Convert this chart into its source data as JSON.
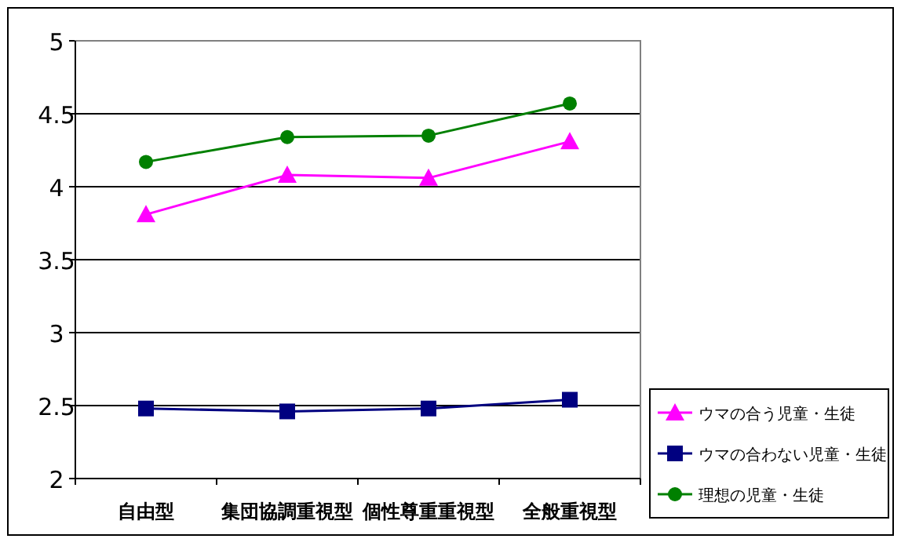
{
  "chart_data": {
    "type": "line",
    "categories": [
      "自由型",
      "集団協調重視型",
      "個性尊重重視型",
      "全般重視型"
    ],
    "series": [
      {
        "name": "ウマの合う児童・生徒",
        "color": "#ff00ff",
        "marker": "triangle",
        "values": [
          3.81,
          4.08,
          4.06,
          4.31
        ]
      },
      {
        "name": "ウマの合わない児童・生徒",
        "color": "#000080",
        "marker": "square",
        "values": [
          2.48,
          2.46,
          2.48,
          2.54
        ]
      },
      {
        "name": "理想の児童・生徒",
        "color": "#008000",
        "marker": "circle",
        "values": [
          4.17,
          4.34,
          4.35,
          4.57
        ]
      }
    ],
    "ylim": [
      2,
      5
    ],
    "yticks": [
      2,
      2.5,
      3,
      3.5,
      4,
      4.5,
      5
    ],
    "grid": "y",
    "legend": "right",
    "line_style": "solid"
  }
}
